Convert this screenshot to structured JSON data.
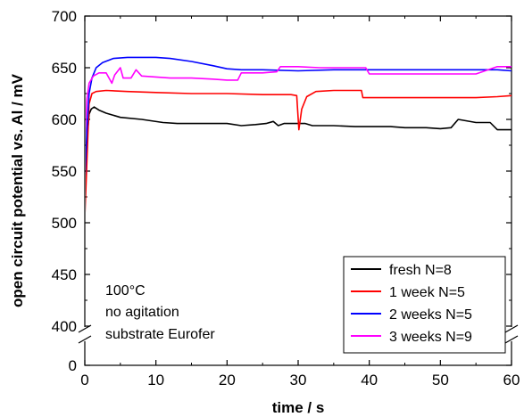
{
  "chart_data": {
    "type": "line",
    "xlabel": "time / s",
    "ylabel": "open circuit potential vs. Al / mV",
    "xlim": [
      0,
      60
    ],
    "ylim_upper": [
      400,
      700
    ],
    "ylim_lower": [
      0,
      400
    ],
    "y_axis_break": true,
    "x_ticks": [
      "0",
      "10",
      "20",
      "30",
      "40",
      "50",
      "60"
    ],
    "y_ticks": [
      "0",
      "400",
      "450",
      "500",
      "550",
      "600",
      "650",
      "700"
    ],
    "legend_position": "bottom-right",
    "annotation": [
      "100°C",
      "no agitation",
      "substrate Eurofer"
    ],
    "series": [
      {
        "name": "fresh N=8",
        "color": "#000000",
        "x": [
          0,
          0.3,
          0.6,
          0.9,
          1.3,
          2,
          3,
          5,
          8,
          11,
          13,
          15,
          17,
          20,
          22,
          24,
          25.5,
          26.5,
          27.2,
          28,
          30,
          31,
          32,
          35,
          38,
          40,
          43,
          45,
          48,
          50,
          51.5,
          52.5,
          55,
          57,
          58,
          60
        ],
        "y": [
          525,
          580,
          605,
          610,
          612,
          609,
          606,
          602,
          600,
          597,
          596,
          596,
          596,
          596,
          594,
          595,
          596,
          598,
          594,
          596,
          596,
          596,
          594,
          594,
          593,
          593,
          593,
          592,
          592,
          591,
          592,
          600,
          597,
          597,
          590,
          590
        ]
      },
      {
        "name": "1 week N=5",
        "color": "#ff0000",
        "x": [
          0,
          0.3,
          0.6,
          1,
          1.6,
          3,
          6,
          10,
          15,
          20,
          25,
          29,
          29.8,
          30.1,
          30.5,
          31.2,
          32.5,
          35,
          38,
          38.9,
          39.1,
          42,
          45,
          50,
          55,
          58,
          60
        ],
        "y": [
          505,
          560,
          615,
          625,
          627,
          628,
          627,
          626,
          625,
          625,
          624,
          624,
          623,
          590,
          610,
          622,
          627,
          628,
          628,
          628,
          621,
          621,
          621,
          621,
          621,
          622,
          623
        ]
      },
      {
        "name": "2 weeks N=5",
        "color": "#0000ff",
        "x": [
          0,
          0.3,
          0.6,
          1,
          1.6,
          2.5,
          4,
          6,
          8,
          10,
          12,
          15,
          18,
          20,
          22,
          25,
          30,
          35,
          40,
          45,
          50,
          55,
          58,
          60
        ],
        "y": [
          540,
          590,
          625,
          640,
          650,
          655,
          659,
          660,
          660,
          660,
          659,
          656,
          652,
          649,
          648,
          648,
          647,
          648,
          648,
          648,
          648,
          648,
          648,
          647
        ]
      },
      {
        "name": "3 weeks N=9",
        "color": "#ff00ff",
        "x": [
          0,
          0.3,
          0.6,
          1.2,
          2,
          3,
          3.8,
          4.2,
          5,
          5.4,
          6.5,
          7.2,
          8,
          10,
          12,
          15,
          18,
          20,
          21.5,
          22,
          25,
          27,
          27.5,
          30,
          33,
          36,
          39.5,
          40,
          45,
          50,
          55,
          58,
          60
        ],
        "y": [
          580,
          620,
          635,
          642,
          645,
          645,
          635,
          643,
          650,
          640,
          640,
          648,
          642,
          641,
          640,
          640,
          639,
          638,
          638,
          645,
          645,
          646,
          651,
          651,
          650,
          650,
          650,
          644,
          644,
          644,
          644,
          651,
          651
        ]
      }
    ]
  }
}
